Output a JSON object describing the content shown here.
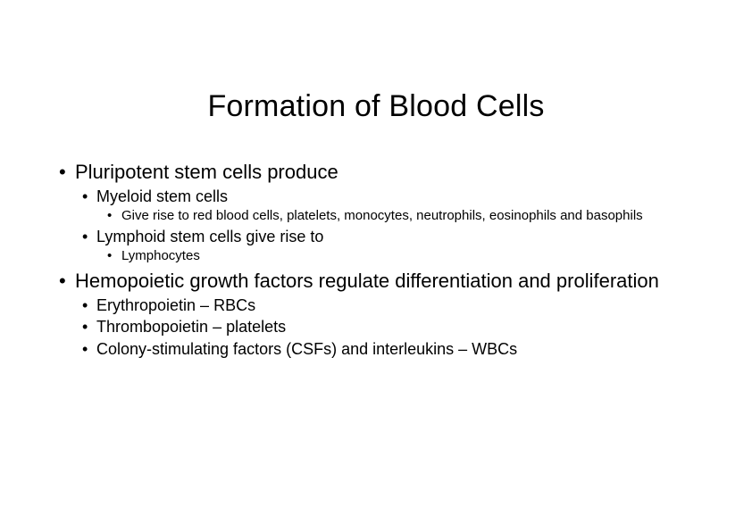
{
  "title": "Formation of Blood Cells",
  "bullets": {
    "b1": "Pluripotent stem cells produce",
    "b1_1": "Myeloid stem cells",
    "b1_1_1": "Give rise to red blood cells, platelets, monocytes, neutrophils, eosinophils and basophils",
    "b1_2": "Lymphoid stem cells give rise to",
    "b1_2_1": "Lymphocytes",
    "b2": "Hemopoietic growth factors regulate differentiation and proliferation",
    "b2_1": "Erythropoietin – RBCs",
    "b2_2": "Thrombopoietin – platelets",
    "b2_3": "Colony-stimulating factors (CSFs) and interleukins – WBCs"
  },
  "colors": {
    "background": "#ffffff",
    "text": "#000000"
  },
  "typography": {
    "title_font": "Arial",
    "body_font": "Trebuchet MS",
    "title_size_pt": 26,
    "lvl1_size_pt": 17,
    "lvl2_size_pt": 14,
    "lvl3_size_pt": 11
  }
}
